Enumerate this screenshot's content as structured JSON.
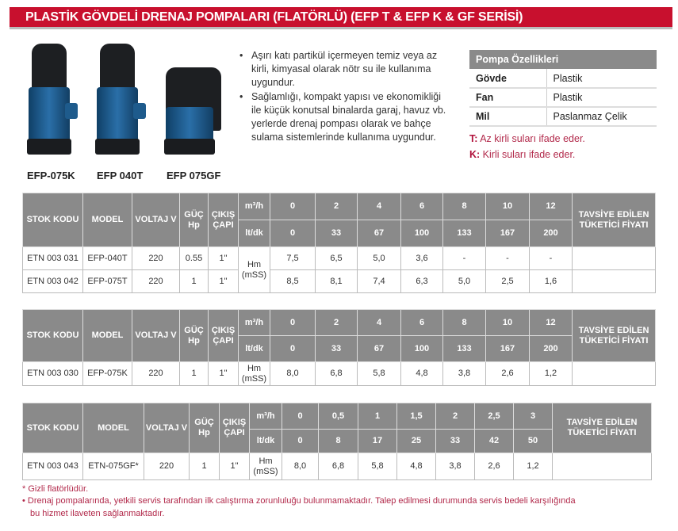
{
  "title": "PLASTİK GÖVDELİ DRENAJ POMPALARI (FLATÖRLÜ) (EFP T & EFP K & GF SERİSİ)",
  "products": [
    "EFP-075K",
    "EFP 040T",
    "EFP 075GF"
  ],
  "bullets": [
    "Aşırı katı partikül içermeyen temiz veya az kirli, kimyasal olarak nötr su ile kullanıma uygundur.",
    "Sağlamlığı, kompakt yapısı ve ekonomikliği ile küçük konutsal binalarda garaj, havuz vb. yerlerde drenaj pompası olarak ve  bahçe sulama sistemlerinde kullanıma uygundur."
  ],
  "spec": {
    "header": "Pompa Özellikleri",
    "rows": [
      {
        "k": "Gövde",
        "v": "Plastik"
      },
      {
        "k": "Fan",
        "v": "Plastik"
      },
      {
        "k": "Mil",
        "v": "Paslanmaz Çelik"
      }
    ]
  },
  "notes": [
    {
      "k": "T:",
      "v": " Az kirli suları ifade eder."
    },
    {
      "k": "K:",
      "v": " Kirli suları ifade eder."
    }
  ],
  "headers": {
    "stok": "STOK KODU",
    "model": "MODEL",
    "voltaj": "VOLTAJ V",
    "guc": "GÜÇ Hp",
    "cikis": "ÇIKIŞ ÇAPI",
    "m3h": "m³/h",
    "ltdk": "lt/dk",
    "hm": "Hm (mSS)",
    "fiyat": "TAVSİYE EDİLEN TÜKETİCİ FİYATI"
  },
  "tables": [
    {
      "m3h": [
        "0",
        "2",
        "4",
        "6",
        "8",
        "10",
        "12"
      ],
      "ltdk": [
        "0",
        "33",
        "67",
        "100",
        "133",
        "167",
        "200"
      ],
      "rows": [
        {
          "stok": "ETN 003 031",
          "model": "EFP-040T",
          "v": "220",
          "hp": "0.55",
          "cap": "1\"",
          "vals": [
            "7,5",
            "6,5",
            "5,0",
            "3,6",
            "-",
            "-",
            "-"
          ]
        },
        {
          "stok": "ETN 003 042",
          "model": "EFP-075T",
          "v": "220",
          "hp": "1",
          "cap": "1\"",
          "vals": [
            "8,5",
            "8,1",
            "7,4",
            "6,3",
            "5,0",
            "2,5",
            "1,6"
          ]
        }
      ]
    },
    {
      "m3h": [
        "0",
        "2",
        "4",
        "6",
        "8",
        "10",
        "12"
      ],
      "ltdk": [
        "0",
        "33",
        "67",
        "100",
        "133",
        "167",
        "200"
      ],
      "rows": [
        {
          "stok": "ETN 003 030",
          "model": "EFP-075K",
          "v": "220",
          "hp": "1",
          "cap": "1\"",
          "vals": [
            "8,0",
            "6,8",
            "5,8",
            "4,8",
            "3,8",
            "2,6",
            "1,2"
          ]
        }
      ]
    },
    {
      "m3h": [
        "0",
        "0,5",
        "1",
        "1,5",
        "2",
        "2,5",
        "3"
      ],
      "ltdk": [
        "0",
        "8",
        "17",
        "25",
        "33",
        "42",
        "50"
      ],
      "rows": [
        {
          "stok": "ETN 003 043",
          "model": "ETN-075GF*",
          "v": "220",
          "hp": "1",
          "cap": "1\"",
          "vals": [
            "8,0",
            "6,8",
            "5,8",
            "4,8",
            "3,8",
            "2,6",
            "1,2"
          ]
        }
      ]
    }
  ],
  "footnotes": [
    "* Gizli flatörlüdür.",
    "• Drenaj pompalarında, yetkili servis tarafından ilk calıştırma zorunluluğu bulunmamaktadır. Talep edilmesi durumunda servis bedeli karşılığında",
    "bu hizmet ilaveten sağlanmaktadır."
  ]
}
